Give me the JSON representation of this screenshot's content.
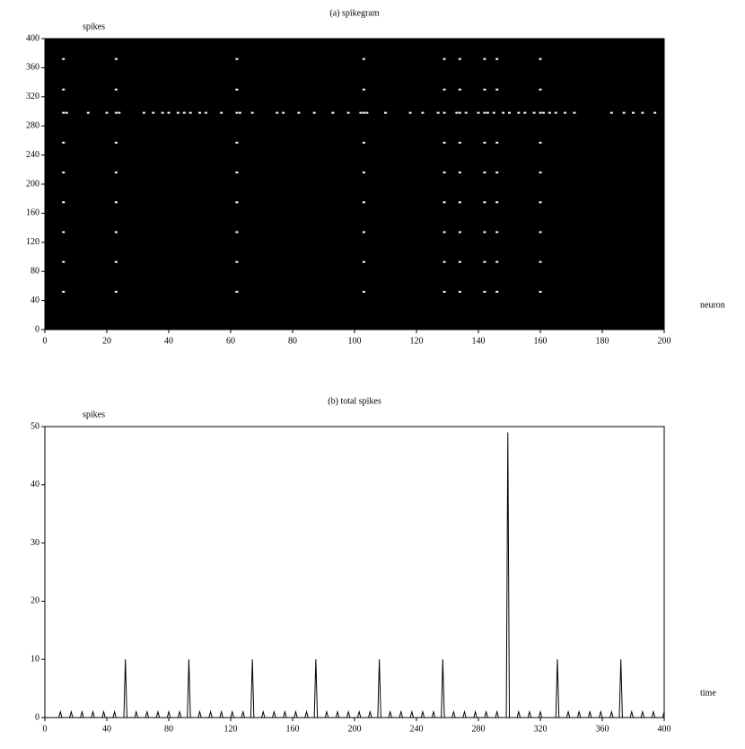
{
  "chart_data": [
    {
      "type": "scatter",
      "title": "(a) spikegram",
      "xlabel": "neuron",
      "ylabel": "spikes",
      "xlim": [
        0,
        200
      ],
      "xticks": [
        0,
        20,
        40,
        60,
        80,
        100,
        120,
        140,
        160,
        180,
        200
      ],
      "ylim": [
        0,
        400
      ],
      "yticks": [
        0,
        40,
        80,
        120,
        160,
        200,
        240,
        280,
        320,
        360,
        400
      ],
      "plot_background": "#000000",
      "color": "#ffffff",
      "x": [
        6,
        23,
        62,
        103,
        129,
        134,
        142,
        146,
        160,
        6,
        23,
        62,
        103,
        129,
        134,
        142,
        146,
        160,
        6,
        23,
        62,
        103,
        129,
        134,
        142,
        146,
        160,
        6,
        23,
        62,
        103,
        129,
        134,
        142,
        146,
        160,
        6,
        23,
        62,
        103,
        129,
        134,
        142,
        146,
        160,
        6,
        23,
        62,
        103,
        129,
        134,
        142,
        146,
        160,
        6,
        23,
        62,
        103,
        129,
        134,
        142,
        146,
        160,
        6,
        23,
        62,
        103,
        129,
        134,
        142,
        146,
        160,
        6,
        7,
        14,
        20,
        23,
        24,
        32,
        35,
        38,
        40,
        43,
        45,
        47,
        50,
        52,
        57,
        62,
        63,
        67,
        75,
        77,
        82,
        87,
        93,
        98,
        102,
        103,
        104,
        110,
        118,
        122,
        127,
        129,
        133,
        134,
        136,
        140,
        142,
        143,
        145,
        148,
        150,
        153,
        155,
        158,
        160,
        161,
        163,
        165,
        168,
        171,
        183,
        187,
        190,
        193,
        197
      ],
      "values": [
        52,
        52,
        52,
        52,
        52,
        52,
        52,
        52,
        52,
        93,
        93,
        93,
        93,
        93,
        93,
        93,
        93,
        93,
        134,
        134,
        134,
        134,
        134,
        134,
        134,
        134,
        134,
        175,
        175,
        175,
        175,
        175,
        175,
        175,
        175,
        175,
        216,
        216,
        216,
        216,
        216,
        216,
        216,
        216,
        216,
        257,
        257,
        257,
        257,
        257,
        257,
        257,
        257,
        257,
        330,
        330,
        330,
        330,
        330,
        330,
        330,
        330,
        330,
        372,
        372,
        372,
        372,
        372,
        372,
        372,
        372,
        372,
        298,
        298,
        298,
        298,
        298,
        298,
        298,
        298,
        298,
        298,
        298,
        298,
        298,
        298,
        298,
        298,
        298,
        298,
        298,
        298,
        298,
        298,
        298,
        298,
        298,
        298,
        298,
        298,
        298,
        298,
        298,
        298,
        298,
        298,
        298,
        298,
        298,
        298,
        298,
        298,
        298,
        298,
        298,
        298,
        298,
        298,
        298,
        298,
        298,
        298,
        298,
        298,
        298,
        298,
        298,
        298
      ]
    },
    {
      "type": "line",
      "title": "(b) total spikes",
      "xlabel": "time",
      "ylabel": "spikes",
      "xlim": [
        0,
        400
      ],
      "xticks": [
        0,
        40,
        80,
        120,
        160,
        200,
        240,
        280,
        320,
        360,
        400
      ],
      "ylim": [
        0,
        50
      ],
      "yticks": [
        0,
        10,
        20,
        30,
        40,
        50
      ],
      "color": "#000000",
      "x": [
        0,
        9,
        10,
        11,
        16,
        17,
        18,
        23,
        24,
        25,
        30,
        31,
        32,
        37,
        38,
        39,
        44,
        45,
        46,
        51,
        52,
        53,
        58,
        59,
        60,
        65,
        66,
        67,
        72,
        73,
        74,
        79,
        80,
        81,
        86,
        87,
        88,
        92,
        93,
        94,
        99,
        100,
        101,
        106,
        107,
        108,
        113,
        114,
        115,
        120,
        121,
        122,
        127,
        128,
        129,
        133,
        134,
        135,
        140,
        141,
        142,
        147,
        148,
        149,
        154,
        155,
        156,
        161,
        162,
        163,
        168,
        169,
        170,
        174,
        175,
        176,
        181,
        182,
        183,
        188,
        189,
        190,
        195,
        196,
        197,
        202,
        203,
        204,
        209,
        210,
        211,
        215,
        216,
        217,
        222,
        223,
        224,
        229,
        230,
        231,
        236,
        237,
        238,
        243,
        244,
        245,
        250,
        251,
        252,
        256,
        257,
        258,
        263,
        264,
        265,
        270,
        271,
        272,
        277,
        278,
        279,
        284,
        285,
        286,
        291,
        292,
        293,
        298,
        299,
        300,
        305,
        306,
        307,
        312,
        313,
        314,
        319,
        320,
        321,
        330,
        331,
        332,
        337,
        338,
        339,
        344,
        345,
        346,
        351,
        352,
        353,
        358,
        359,
        360,
        365,
        366,
        367,
        371,
        372,
        373,
        378,
        379,
        380,
        385,
        386,
        387,
        392,
        393,
        394,
        399,
        400
      ],
      "values": [
        0,
        0,
        1,
        0,
        0,
        1,
        0,
        0,
        1,
        0,
        0,
        1,
        0,
        0,
        1,
        0,
        0,
        1,
        0,
        0,
        10,
        0,
        0,
        1,
        0,
        0,
        1,
        0,
        0,
        1,
        0,
        0,
        1,
        0,
        0,
        1,
        0,
        0,
        10,
        0,
        0,
        1,
        0,
        0,
        1,
        0,
        0,
        1,
        0,
        0,
        1,
        0,
        0,
        1,
        0,
        0,
        10,
        0,
        0,
        1,
        0,
        0,
        1,
        0,
        0,
        1,
        0,
        0,
        1,
        0,
        0,
        1,
        0,
        0,
        10,
        0,
        0,
        1,
        0,
        0,
        1,
        0,
        0,
        1,
        0,
        0,
        1,
        0,
        0,
        1,
        0,
        0,
        10,
        0,
        0,
        1,
        0,
        0,
        1,
        0,
        0,
        1,
        0,
        0,
        1,
        0,
        0,
        1,
        0,
        0,
        10,
        0,
        0,
        1,
        0,
        0,
        1,
        0,
        0,
        1,
        0,
        0,
        1,
        0,
        0,
        1,
        0,
        0,
        49,
        0,
        0,
        1,
        0,
        0,
        1,
        0,
        0,
        1,
        0,
        0,
        10,
        0,
        0,
        1,
        0,
        0,
        1,
        0,
        0,
        1,
        0,
        0,
        1,
        0,
        0,
        1,
        0,
        0,
        10,
        0,
        0,
        1,
        0,
        0,
        1,
        0,
        0,
        1,
        0,
        0,
        1
      ]
    }
  ]
}
